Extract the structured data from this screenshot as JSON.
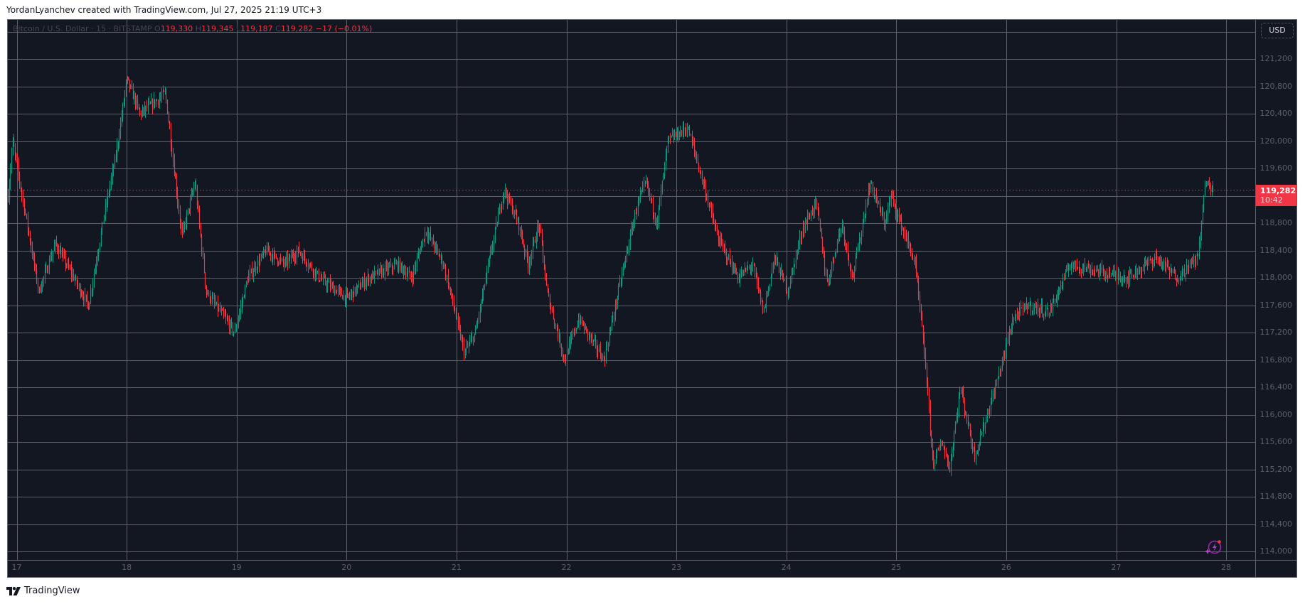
{
  "header": {
    "credit": "YordanLyanchev created with TradingView.com, Jul 27, 2025 21:19 UTC+3"
  },
  "legend": {
    "symbol": "Bitcoin / U.S. Dollar · 15 · BITSTAMP",
    "o_label": "O",
    "o_value": "119,330",
    "h_label": "H",
    "h_value": "119,345",
    "l_label": "L",
    "l_value": "119,187",
    "c_label": "C",
    "c_value": "119,282",
    "change": "−17 (−0.01%)"
  },
  "price_axis": {
    "currency": "USD",
    "labels": [
      "121,200",
      "120,800",
      "120,400",
      "120,000",
      "119,600",
      "118,800",
      "118,400",
      "118,000",
      "117,600",
      "117,200",
      "116,800",
      "116,400",
      "116,000",
      "115,600",
      "115,200",
      "114,800",
      "114,400",
      "114,000"
    ]
  },
  "current_price": {
    "price": "119,282",
    "countdown": "10:42"
  },
  "footer": {
    "brand": "TradingView"
  },
  "colors": {
    "background": "#131722",
    "grid": "#5d606b",
    "up": "#089981",
    "down": "#f23645",
    "price_line": "#f23645"
  },
  "chart_data": {
    "type": "candlestick",
    "title": "Bitcoin / U.S. Dollar · 15 · BITSTAMP",
    "xlabel": "",
    "ylabel": "USD",
    "x_ticks": [
      "17",
      "18",
      "19",
      "20",
      "21",
      "22",
      "23",
      "24",
      "25",
      "26",
      "27",
      "28"
    ],
    "y_ticks": [
      114000,
      114400,
      114800,
      115200,
      115600,
      116000,
      116400,
      116800,
      117200,
      117600,
      118000,
      118400,
      118800,
      119200,
      119600,
      120000,
      120400,
      120800,
      121200
    ],
    "ylim": [
      113900,
      121700
    ],
    "grid": true,
    "last": {
      "open": 119330,
      "high": 119345,
      "low": 119187,
      "close": 119282,
      "change": -17,
      "change_pct": -0.01
    },
    "price_path": [
      {
        "day": 16.92,
        "price": 119200
      },
      {
        "day": 16.96,
        "price": 120000
      },
      {
        "day": 17.2,
        "price": 117800
      },
      {
        "day": 17.35,
        "price": 118500
      },
      {
        "day": 17.65,
        "price": 117600
      },
      {
        "day": 17.78,
        "price": 118800
      },
      {
        "day": 17.9,
        "price": 119800
      },
      {
        "day": 18.0,
        "price": 120900
      },
      {
        "day": 18.12,
        "price": 120400
      },
      {
        "day": 18.35,
        "price": 120700
      },
      {
        "day": 18.5,
        "price": 118600
      },
      {
        "day": 18.62,
        "price": 119400
      },
      {
        "day": 18.72,
        "price": 117800
      },
      {
        "day": 18.98,
        "price": 117200
      },
      {
        "day": 19.1,
        "price": 118000
      },
      {
        "day": 19.27,
        "price": 118400
      },
      {
        "day": 19.43,
        "price": 118200
      },
      {
        "day": 19.56,
        "price": 118400
      },
      {
        "day": 19.75,
        "price": 118000
      },
      {
        "day": 20.0,
        "price": 117700
      },
      {
        "day": 20.2,
        "price": 118000
      },
      {
        "day": 20.46,
        "price": 118200
      },
      {
        "day": 20.59,
        "price": 118000
      },
      {
        "day": 20.72,
        "price": 118700
      },
      {
        "day": 20.88,
        "price": 118200
      },
      {
        "day": 21.07,
        "price": 116900
      },
      {
        "day": 21.17,
        "price": 117200
      },
      {
        "day": 21.3,
        "price": 118300
      },
      {
        "day": 21.43,
        "price": 119300
      },
      {
        "day": 21.56,
        "price": 118800
      },
      {
        "day": 21.65,
        "price": 118200
      },
      {
        "day": 21.75,
        "price": 118800
      },
      {
        "day": 21.82,
        "price": 117800
      },
      {
        "day": 21.98,
        "price": 116800
      },
      {
        "day": 22.11,
        "price": 117400
      },
      {
        "day": 22.34,
        "price": 116800
      },
      {
        "day": 22.47,
        "price": 117800
      },
      {
        "day": 22.63,
        "price": 119000
      },
      {
        "day": 22.72,
        "price": 119400
      },
      {
        "day": 22.82,
        "price": 118800
      },
      {
        "day": 22.92,
        "price": 120000
      },
      {
        "day": 23.1,
        "price": 120200
      },
      {
        "day": 23.24,
        "price": 119400
      },
      {
        "day": 23.37,
        "price": 118600
      },
      {
        "day": 23.56,
        "price": 118000
      },
      {
        "day": 23.69,
        "price": 118200
      },
      {
        "day": 23.79,
        "price": 117500
      },
      {
        "day": 23.89,
        "price": 118300
      },
      {
        "day": 24.01,
        "price": 117800
      },
      {
        "day": 24.14,
        "price": 118700
      },
      {
        "day": 24.27,
        "price": 119100
      },
      {
        "day": 24.37,
        "price": 117900
      },
      {
        "day": 24.5,
        "price": 118800
      },
      {
        "day": 24.6,
        "price": 118000
      },
      {
        "day": 24.76,
        "price": 119400
      },
      {
        "day": 24.89,
        "price": 118800
      },
      {
        "day": 24.95,
        "price": 119200
      },
      {
        "day": 25.17,
        "price": 118200
      },
      {
        "day": 25.26,
        "price": 116800
      },
      {
        "day": 25.33,
        "price": 115300
      },
      {
        "day": 25.42,
        "price": 115600
      },
      {
        "day": 25.48,
        "price": 115200
      },
      {
        "day": 25.58,
        "price": 116400
      },
      {
        "day": 25.71,
        "price": 115400
      },
      {
        "day": 25.9,
        "price": 116400
      },
      {
        "day": 26.06,
        "price": 117400
      },
      {
        "day": 26.19,
        "price": 117600
      },
      {
        "day": 26.39,
        "price": 117500
      },
      {
        "day": 26.58,
        "price": 118200
      },
      {
        "day": 26.84,
        "price": 118100
      },
      {
        "day": 27.1,
        "price": 118000
      },
      {
        "day": 27.36,
        "price": 118300
      },
      {
        "day": 27.55,
        "price": 118000
      },
      {
        "day": 27.74,
        "price": 118300
      },
      {
        "day": 27.81,
        "price": 119400
      },
      {
        "day": 27.88,
        "price": 119282
      }
    ]
  }
}
